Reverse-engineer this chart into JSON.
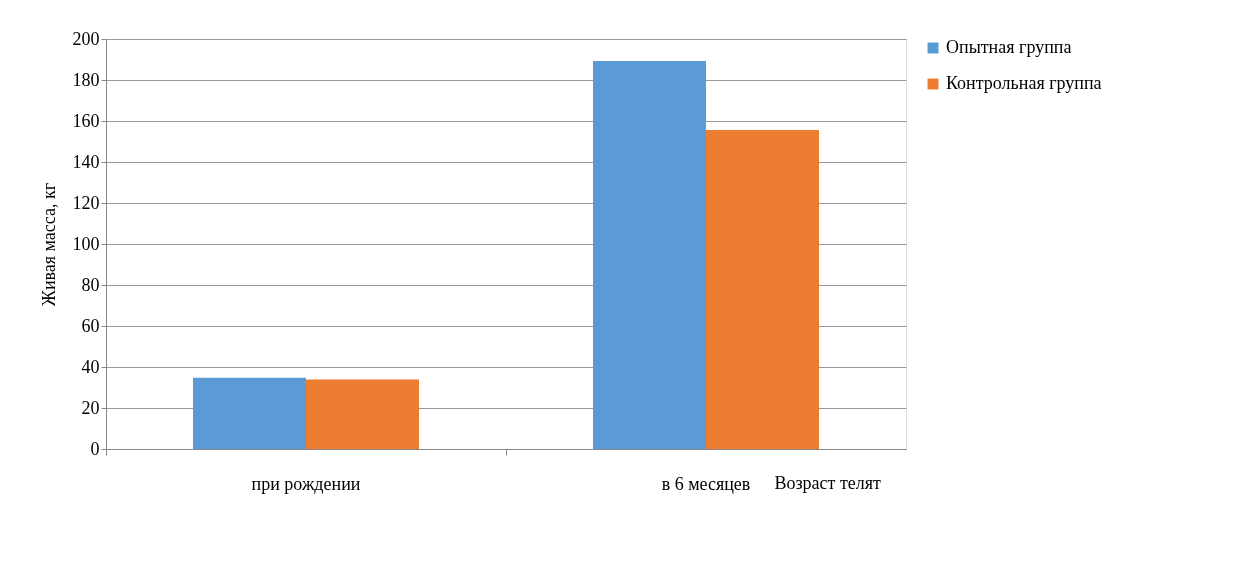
{
  "chart_data": {
    "type": "bar",
    "ylabel": "Живая масса, кг",
    "xlabel": "Возраст телят",
    "categories": [
      "при рождении",
      "в 6 месяцев"
    ],
    "series": [
      {
        "name": "Опытная группа",
        "color": "#5b9bd5",
        "values": [
          34.7,
          189.3
        ]
      },
      {
        "name": "Контрольная группа",
        "color": "#ed7d31",
        "values": [
          33.9,
          155.6
        ]
      }
    ],
    "ylim": [
      0,
      200
    ],
    "yticks": [
      0,
      20,
      40,
      60,
      80,
      100,
      120,
      140,
      160,
      180,
      200
    ],
    "grid": "y",
    "legend": "right"
  }
}
